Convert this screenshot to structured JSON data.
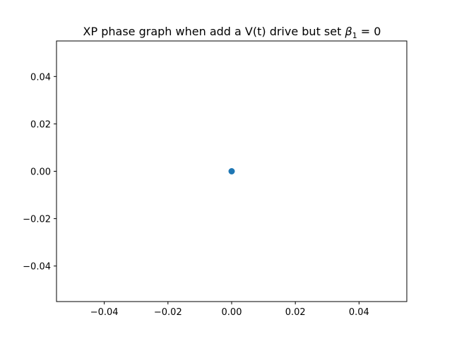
{
  "chart_data": {
    "type": "scatter",
    "title": {
      "prefix": "XP phase graph when add a V(t) drive but set ",
      "symbol": "β",
      "subscript": "1",
      "suffix": " = 0"
    },
    "xlabel": "",
    "ylabel": "",
    "xlim": [
      -0.055,
      0.055
    ],
    "ylim": [
      -0.055,
      0.055
    ],
    "x_ticks": [
      -0.04,
      -0.02,
      0.0,
      0.02,
      0.04
    ],
    "x_tick_labels": [
      "−0.04",
      "−0.02",
      "0.00",
      "0.02",
      "0.04"
    ],
    "y_ticks": [
      -0.04,
      -0.02,
      0.0,
      0.02,
      0.04
    ],
    "y_tick_labels": [
      "−0.04",
      "−0.02",
      "0.00",
      "0.02",
      "0.04"
    ],
    "grid": false,
    "series": [
      {
        "color": "#1f77b4",
        "points": [
          {
            "x": 0.0,
            "y": 0.0
          }
        ]
      }
    ]
  }
}
